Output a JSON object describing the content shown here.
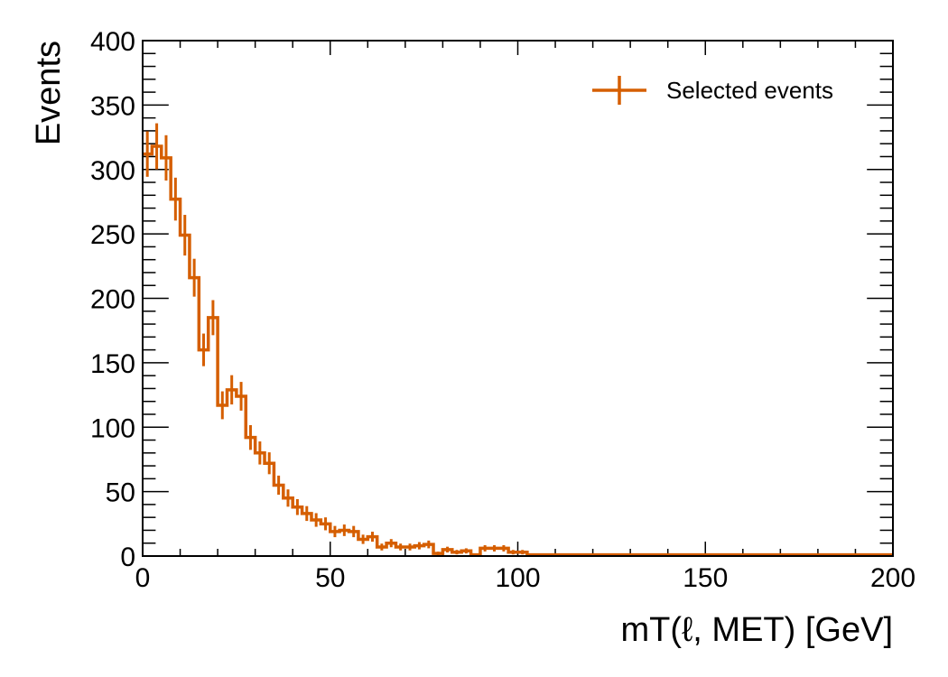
{
  "chart_data": {
    "type": "histogram",
    "xlabel": "mT(ℓ, MET) [GeV]",
    "ylabel": "Events",
    "xlim": [
      0,
      200
    ],
    "ylim": [
      0,
      400
    ],
    "x_ticks": [
      0,
      50,
      100,
      150,
      200
    ],
    "y_ticks": [
      0,
      50,
      100,
      150,
      200,
      250,
      300,
      350,
      400
    ],
    "bin_width": 2.5,
    "grid": false,
    "legend_position": "top-right",
    "series": [
      {
        "name": "Selected events",
        "color": "#d55e00",
        "values": [
          312,
          318,
          309,
          277,
          249,
          216,
          160,
          185,
          117,
          129,
          124,
          92,
          80,
          72,
          55,
          45,
          38,
          33,
          28,
          25,
          19,
          20,
          19,
          13,
          15,
          7,
          10,
          7,
          7,
          8,
          9,
          2,
          5,
          3,
          4,
          1,
          6,
          6,
          6,
          3,
          3,
          1,
          1,
          1,
          1,
          1,
          1,
          1,
          1,
          1,
          1,
          1,
          1,
          1,
          1,
          1,
          1,
          1,
          1,
          1,
          1,
          1,
          1,
          1,
          1,
          1,
          1,
          1,
          1,
          1,
          1,
          1,
          1,
          1,
          1,
          1,
          1,
          1,
          1,
          1
        ]
      }
    ]
  }
}
